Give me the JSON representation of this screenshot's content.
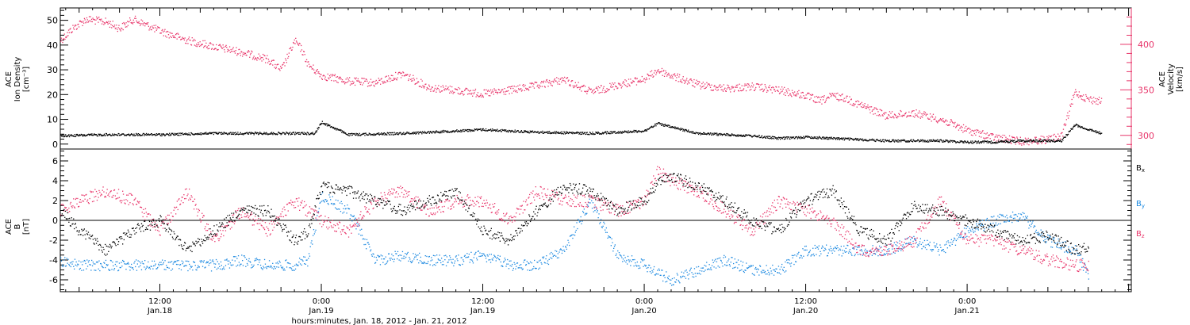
{
  "colors": {
    "black": "#000000",
    "pink": "#e8356a",
    "blue": "#1a88e0"
  },
  "xaxis": {
    "title": "hours:minutes, Jan. 18, 2012 - Jan. 21, 2012",
    "ticks": [
      {
        "t": 12,
        "line1": "12:00",
        "line2": "Jan.18"
      },
      {
        "t": 24,
        "line1": "0:00",
        "line2": "Jan.19"
      },
      {
        "t": 36,
        "line1": "12:00",
        "line2": "Jan.19"
      },
      {
        "t": 48,
        "line1": "0:00",
        "line2": "Jan.20"
      },
      {
        "t": 60,
        "line1": "12:00",
        "line2": "Jan.20"
      },
      {
        "t": 72,
        "line1": "0:00",
        "line2": "Jan.21"
      }
    ]
  },
  "chart_data": [
    {
      "type": "scatter",
      "panel": "top",
      "x_units": "hours since 0:00 Jan. 18, 2012",
      "xlim": [
        4.6,
        84.2
      ],
      "ylabel_left": [
        "ACE",
        "Ion Density",
        "[cm⁻³]"
      ],
      "ylabel_right": [
        "ACE",
        "Velocity",
        "[km/s]"
      ],
      "ylim_left": [
        -2,
        55
      ],
      "yticks_left": [
        0,
        10,
        20,
        30,
        40,
        50
      ],
      "ylim_right": [
        285,
        440
      ],
      "yticks_right": [
        300,
        350,
        400
      ],
      "grid": false,
      "series": [
        {
          "axis": "left",
          "color": "black",
          "x": [
            4.6,
            8,
            12,
            16,
            20,
            22,
            23.5,
            24,
            26,
            30,
            34,
            36,
            40,
            44,
            46,
            48,
            49,
            50,
            52,
            54,
            56,
            58,
            60,
            62,
            64,
            66,
            68,
            70,
            72,
            74,
            76,
            78,
            79,
            80,
            81,
            82
          ],
          "y": [
            3.5,
            4,
            4,
            4.5,
            4.5,
            4.5,
            4.5,
            9,
            4,
            4.5,
            5.5,
            6,
            5,
            4.5,
            5,
            5.5,
            8.5,
            7,
            4.5,
            4,
            3.5,
            2.5,
            3,
            2.5,
            2,
            1.5,
            1.5,
            1.5,
            1,
            1,
            1.5,
            1.5,
            1.5,
            8,
            6,
            4.5
          ]
        },
        {
          "axis": "right",
          "color": "pink",
          "x": [
            4.6,
            5.5,
            6.5,
            8,
            9,
            10,
            12,
            14,
            16,
            18,
            20,
            21,
            22,
            22.5,
            23,
            24,
            26,
            28,
            30,
            32,
            34,
            36,
            38,
            40,
            42,
            44,
            46,
            48,
            49,
            50,
            52,
            54,
            56,
            58,
            60,
            61,
            62,
            63,
            64,
            66,
            68,
            70,
            72,
            74,
            76,
            78,
            79,
            80,
            81,
            82
          ],
          "y": [
            405,
            418,
            428,
            425,
            418,
            428,
            415,
            405,
            398,
            392,
            384,
            372,
            404,
            395,
            378,
            366,
            360,
            358,
            368,
            353,
            350,
            346,
            350,
            355,
            362,
            348,
            356,
            362,
            372,
            366,
            356,
            352,
            354,
            350,
            344,
            338,
            344,
            341,
            334,
            322,
            325,
            318,
            306,
            298,
            294,
            296,
            300,
            348,
            340,
            338
          ]
        }
      ]
    },
    {
      "type": "scatter",
      "panel": "bottom",
      "x_units": "hours since 0:00 Jan. 18, 2012",
      "xlim": [
        4.6,
        84.2
      ],
      "ylabel": [
        "ACE",
        "B",
        "[nT]"
      ],
      "ylim": [
        -7.2,
        7.2
      ],
      "yticks": [
        -6,
        -4,
        -2,
        0,
        2,
        4,
        6
      ],
      "zero_line": true,
      "grid": false,
      "legend": {
        "placement": "right",
        "entries": [
          {
            "label": "B",
            "sub": "x",
            "color": "black"
          },
          {
            "label": "B",
            "sub": "y",
            "color": "blue"
          },
          {
            "label": "B",
            "sub": "z",
            "color": "pink"
          }
        ]
      },
      "series": [
        {
          "name": "Bx",
          "color": "black",
          "x": [
            4.6,
            6,
            8,
            10,
            12,
            14,
            16,
            18,
            20,
            22,
            23,
            24,
            26,
            28,
            30,
            32,
            34,
            36,
            38,
            40,
            42,
            44,
            46,
            48,
            49,
            50,
            52,
            54,
            56,
            58,
            60,
            62,
            64,
            66,
            68,
            70,
            72,
            74,
            76,
            78,
            80,
            81
          ],
          "y": [
            1,
            -1,
            -3,
            -1,
            0,
            -3,
            -1,
            1,
            1,
            -2,
            -1,
            3.5,
            3,
            2,
            1,
            2,
            3,
            -1,
            -2,
            1,
            3.5,
            3,
            1,
            2,
            4,
            4.5,
            3.5,
            2,
            0,
            -1,
            2,
            3,
            -1,
            -2,
            1.5,
            1,
            0,
            -1,
            -2,
            -1.5,
            -3,
            -2.5
          ]
        },
        {
          "name": "By",
          "color": "blue",
          "x": [
            4.6,
            6,
            8,
            10,
            12,
            14,
            16,
            18,
            20,
            22,
            23,
            24,
            26,
            28,
            30,
            32,
            34,
            36,
            38,
            40,
            42,
            44,
            46,
            48,
            50,
            52,
            54,
            56,
            58,
            60,
            62,
            64,
            66,
            68,
            70,
            72,
            74,
            76,
            78,
            80,
            81
          ],
          "y": [
            -4,
            -4.5,
            -4.5,
            -4.5,
            -4.5,
            -4.5,
            -4.5,
            -4,
            -4.5,
            -4.5,
            -4,
            2.5,
            1,
            -4,
            -3.5,
            -4,
            -4,
            -3.5,
            -4.5,
            -4.5,
            -3,
            2,
            -3.5,
            -4.5,
            -6,
            -5,
            -4,
            -5,
            -5,
            -3,
            -3,
            -3,
            -3,
            -2,
            -3,
            -1,
            0,
            0.5,
            -2,
            -3,
            -5.5
          ]
        },
        {
          "name": "Bz",
          "color": "pink",
          "x": [
            4.6,
            6,
            8,
            10,
            12,
            14,
            16,
            18,
            20,
            22,
            23,
            24,
            26,
            28,
            30,
            32,
            34,
            36,
            38,
            40,
            42,
            44,
            46,
            48,
            49,
            50,
            52,
            54,
            56,
            58,
            60,
            62,
            64,
            66,
            68,
            70,
            72,
            74,
            76,
            78,
            80,
            81
          ],
          "y": [
            1,
            2,
            3,
            2,
            -1,
            3,
            -2,
            1,
            -1,
            2,
            1,
            0,
            -1,
            2,
            3,
            1,
            2,
            2,
            0,
            3,
            2,
            2,
            1,
            2,
            5,
            4,
            3,
            1,
            -1,
            2,
            1,
            0,
            -3,
            -3,
            -2,
            2,
            -2,
            -2,
            -3,
            -4,
            -4.5,
            -4.5
          ]
        }
      ]
    }
  ]
}
